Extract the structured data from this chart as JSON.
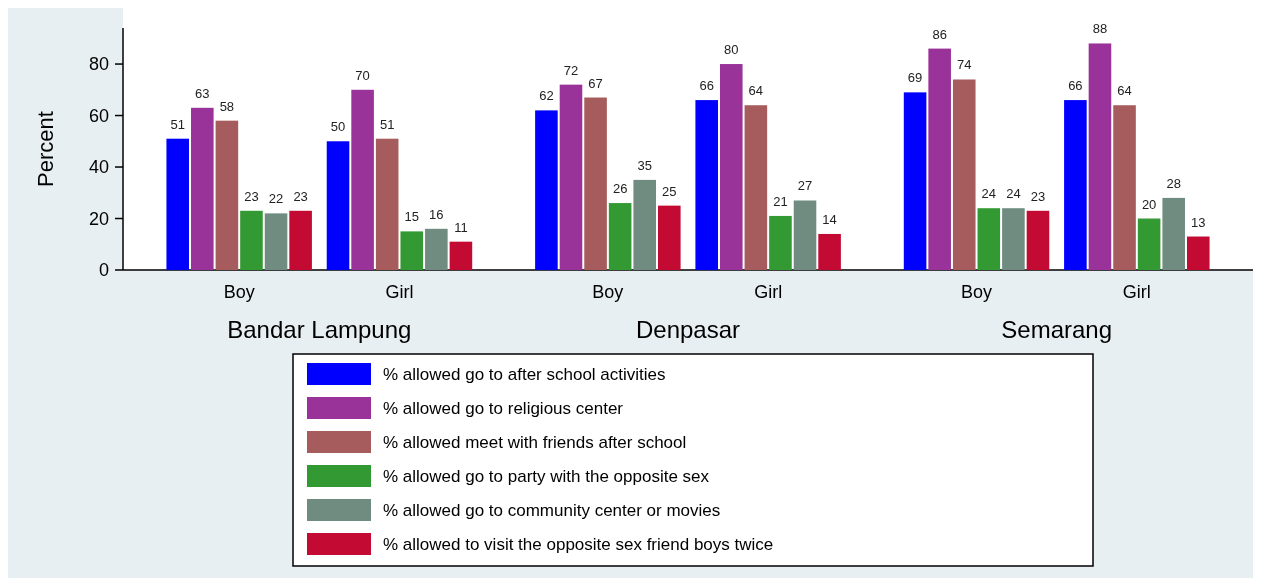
{
  "chart_data": {
    "type": "bar",
    "ylabel": "Percent",
    "categories": [
      "Boy",
      "Girl",
      "Boy",
      "Girl",
      "Boy",
      "Girl"
    ],
    "annotations": [
      "Bandar Lampung",
      "Denpasar",
      "Semarang"
    ],
    "series": [
      {
        "name": "% allowed go to after school activities",
        "color": "#0000ff",
        "values": [
          51,
          50,
          62,
          66,
          69,
          66
        ]
      },
      {
        "name": "% allowed go to religious center",
        "color": "#993399",
        "values": [
          63,
          70,
          72,
          80,
          86,
          88
        ]
      },
      {
        "name": "% allowed meet with friends after school",
        "color": "#a65c5c",
        "values": [
          58,
          51,
          67,
          64,
          74,
          64
        ]
      },
      {
        "name": "% allowed go to party with the opposite sex",
        "color": "#339933",
        "values": [
          23,
          15,
          26,
          21,
          24,
          20
        ]
      },
      {
        "name": "% allowed go to community center or movies",
        "color": "#708c80",
        "values": [
          22,
          16,
          35,
          27,
          24,
          28
        ]
      },
      {
        "name": "% allowed to visit the opposite sex friend boys twice",
        "color": "#c20a33",
        "values": [
          23,
          11,
          25,
          14,
          23,
          13
        ]
      }
    ],
    "ylim": [
      0,
      94
    ],
    "yticks": [
      0,
      20,
      40,
      60,
      80
    ],
    "data_labels": true,
    "legend": "bottom",
    "grid": false
  }
}
